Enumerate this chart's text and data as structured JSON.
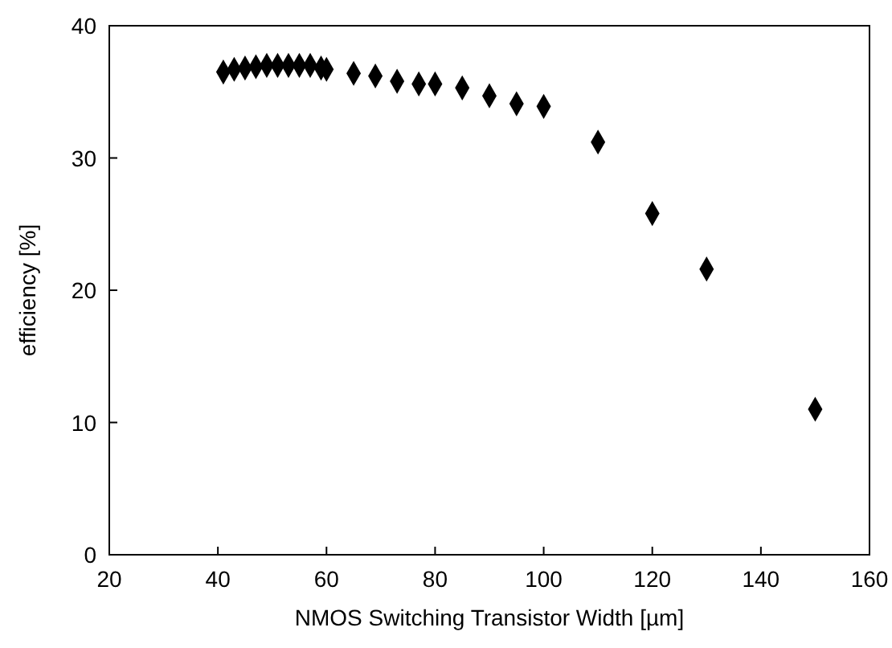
{
  "chart_data": {
    "type": "scatter",
    "xlabel": "NMOS Switching Transistor Width [µm]",
    "ylabel": "efficiency [%]",
    "x": [
      41,
      43,
      45,
      47,
      49,
      51,
      53,
      55,
      57,
      59,
      60,
      65,
      69,
      73,
      77,
      80,
      85,
      90,
      95,
      100,
      110,
      120,
      130,
      150
    ],
    "series": [
      {
        "color": "#000000",
        "values": [
          36.5,
          36.7,
          36.8,
          36.9,
          37,
          37,
          37,
          37,
          37,
          36.8,
          36.7,
          36.4,
          36.2,
          35.8,
          35.6,
          35.6,
          35.3,
          34.7,
          34.1,
          33.9,
          31.2,
          25.8,
          21.6,
          11
        ]
      }
    ],
    "xlim": [
      20,
      160
    ],
    "xticks": [
      20,
      40,
      60,
      80,
      100,
      120,
      140,
      160
    ],
    "ylim": [
      0,
      40
    ],
    "yticks": [
      0,
      10,
      20,
      30,
      40
    ],
    "marker": "diamond",
    "grid": false
  }
}
